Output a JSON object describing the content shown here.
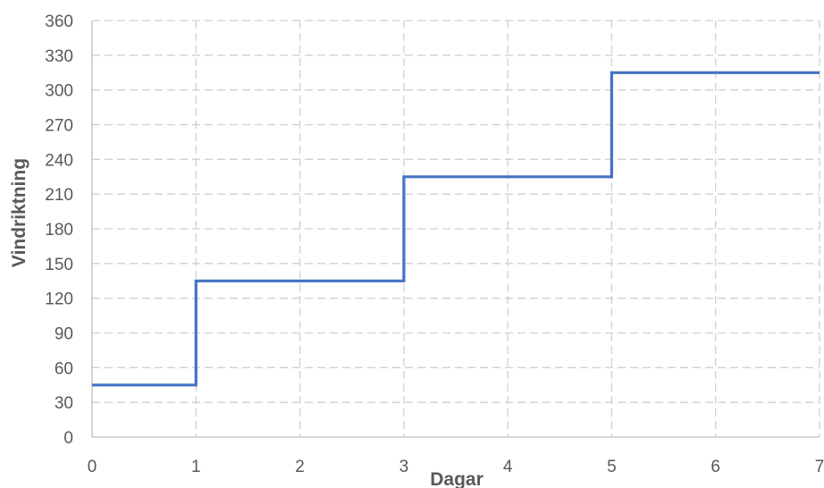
{
  "chart_data": {
    "type": "line",
    "step": true,
    "title": "",
    "xlabel": "Dagar",
    "ylabel": "Vindriktning",
    "xlim": [
      0,
      7
    ],
    "ylim": [
      0,
      360
    ],
    "x_ticks": [
      0,
      1,
      2,
      3,
      4,
      5,
      6,
      7
    ],
    "y_ticks": [
      0,
      30,
      60,
      90,
      120,
      150,
      180,
      210,
      240,
      270,
      300,
      330,
      360
    ],
    "grid": true,
    "grid_style": "dashed",
    "series": [
      {
        "color": "#4472c4",
        "x": [
          0,
          1,
          1,
          3,
          3,
          5,
          5,
          7
        ],
        "y": [
          45,
          45,
          135,
          135,
          225,
          225,
          315,
          315
        ]
      }
    ]
  }
}
